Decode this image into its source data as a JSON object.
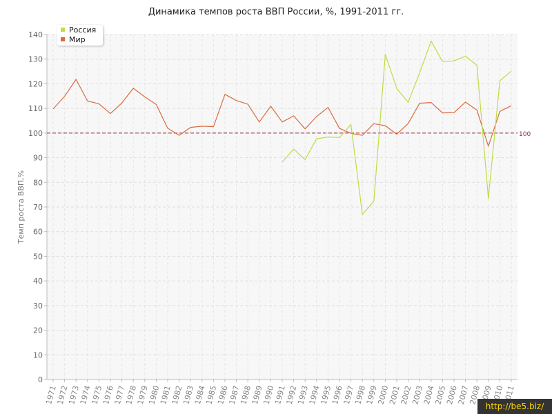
{
  "chart_data": {
    "type": "line",
    "title": "Динамика темпов роста ВВП России, %, 1991-2011 гг.",
    "ylabel": "Темп роста ВВП,%",
    "xlabel": "",
    "ylim": [
      0,
      140
    ],
    "yticks": [
      0,
      10,
      20,
      30,
      40,
      50,
      60,
      70,
      80,
      90,
      100,
      110,
      120,
      130,
      140
    ],
    "categories": [
      "1971",
      "1972",
      "1973",
      "1974",
      "1975",
      "1976",
      "1977",
      "1978",
      "1979",
      "1980",
      "1981",
      "1982",
      "1983",
      "1984",
      "1985",
      "1986",
      "1987",
      "1988",
      "1989",
      "1990",
      "1991",
      "1992",
      "1993",
      "1994",
      "1995",
      "1996",
      "1997",
      "1998",
      "1999",
      "2000",
      "2001",
      "2002",
      "2003",
      "2004",
      "2005",
      "2006",
      "2007",
      "2008",
      "2009",
      "2010",
      "2011"
    ],
    "grid": true,
    "legend_position": "top-left",
    "reference_line": {
      "value": 100,
      "label": "100",
      "color": "#a0243a"
    },
    "series": [
      {
        "name": "Россия",
        "color": "#bcdd44",
        "values": [
          null,
          null,
          null,
          null,
          null,
          null,
          null,
          null,
          null,
          null,
          null,
          null,
          null,
          null,
          null,
          null,
          null,
          null,
          null,
          null,
          88.2,
          93.5,
          89.2,
          97.7,
          98.4,
          98.2,
          103.5,
          67,
          72.3,
          132,
          118.1,
          112.5,
          124.5,
          137.3,
          129,
          129.3,
          131.2,
          127.5,
          73.5,
          121.2,
          125.1
        ]
      },
      {
        "name": "Мир",
        "color": "#d96a3e",
        "values": [
          109.8,
          114.9,
          121.8,
          113,
          111.9,
          107.9,
          112.2,
          118.2,
          114.7,
          111.6,
          102,
          99.1,
          102.3,
          102.8,
          102.6,
          115.7,
          113.2,
          111.7,
          104.5,
          110.9,
          104.5,
          107,
          101.7,
          106.7,
          110.4,
          101.9,
          99.9,
          99.1,
          103.8,
          103,
          99.5,
          103.9,
          112.1,
          112.4,
          108.2,
          108.3,
          112.6,
          109.3,
          94.7,
          108.8,
          111.1
        ]
      }
    ]
  },
  "watermark": "http://be5.biz/"
}
